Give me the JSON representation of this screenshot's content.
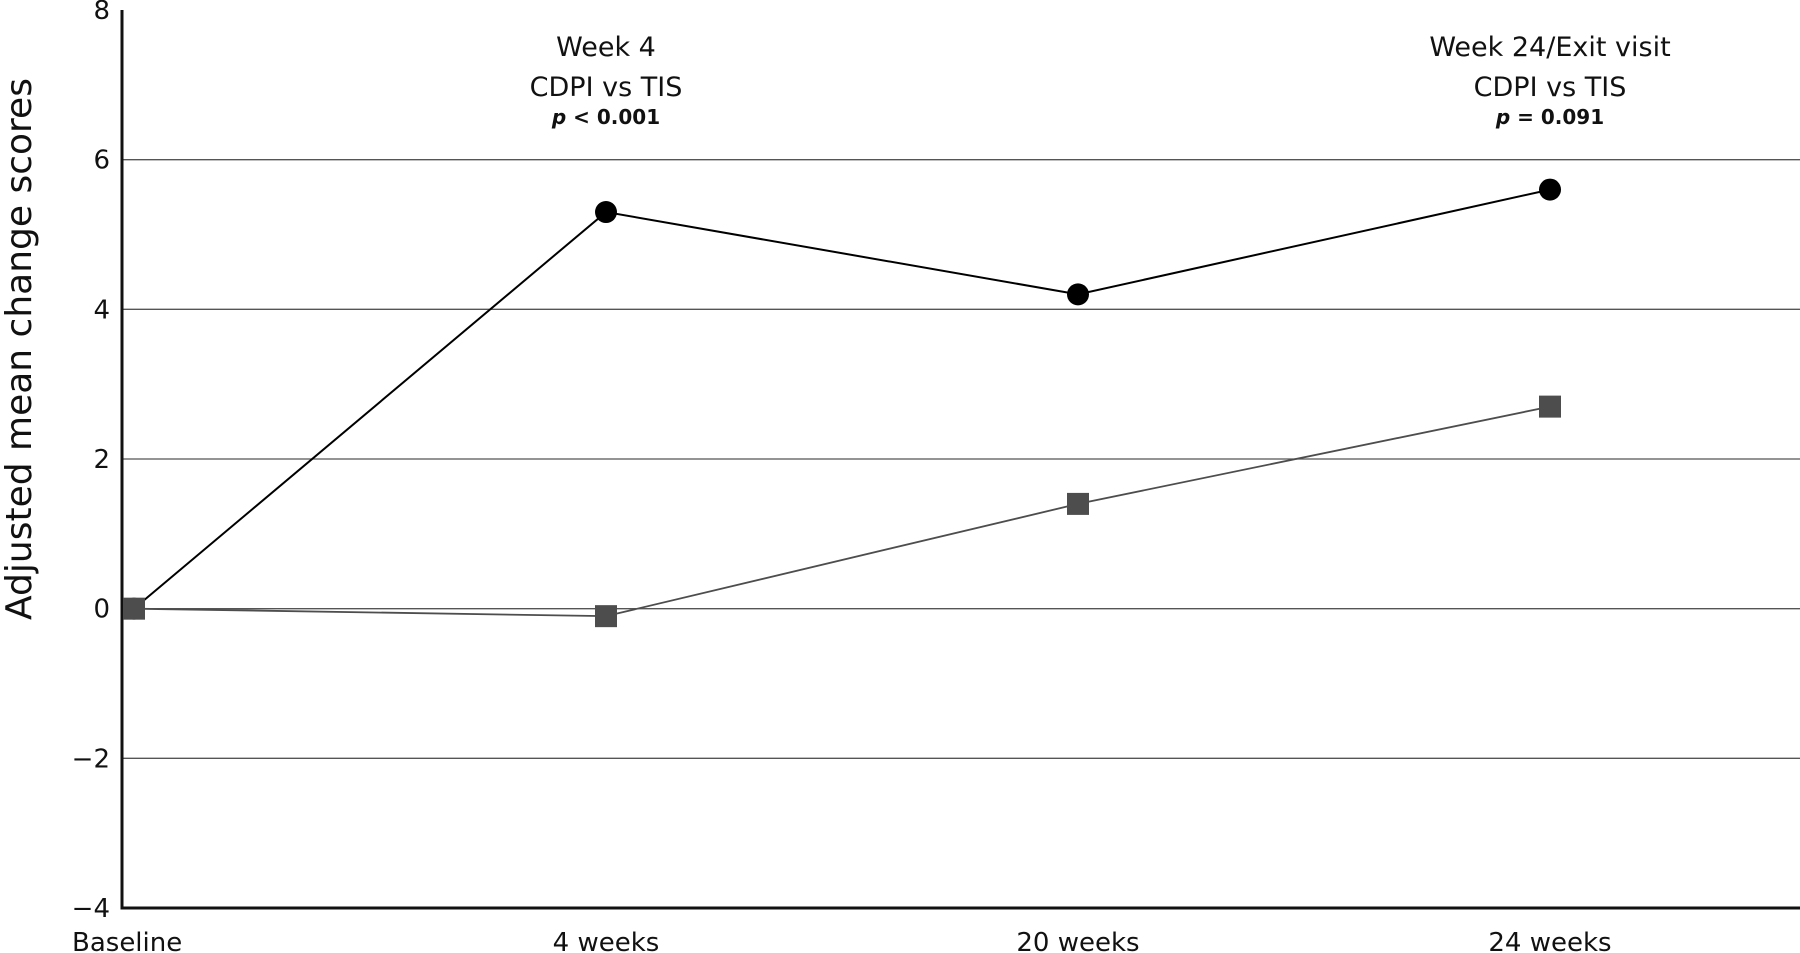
{
  "chart_data": {
    "type": "line",
    "title": "",
    "xlabel": "",
    "ylabel": "Adjusted mean change scores",
    "categories": [
      "Baseline",
      "4 weeks",
      "20 weeks",
      "24 weeks"
    ],
    "ylim": [
      -4,
      8
    ],
    "yticks": [
      -4,
      -2,
      0,
      2,
      4,
      6,
      8
    ],
    "ytick_labels": [
      "−4",
      "−2",
      "0",
      "2",
      "4",
      "6",
      "8"
    ],
    "grid": true,
    "series": [
      {
        "marker": "circle",
        "color": "#000000",
        "values": [
          0.0,
          5.3,
          4.2,
          5.6
        ]
      },
      {
        "marker": "square",
        "color": "#4d4d4d",
        "values": [
          0.0,
          -0.1,
          1.4,
          2.7
        ]
      }
    ],
    "annotations": [
      {
        "category": "4 weeks",
        "line1": "Week 4",
        "line2": "CDPI vs TIS",
        "p_label": "p",
        "p_rest": " < 0.001"
      },
      {
        "category": "24 weeks",
        "line1": "Week 24/Exit visit",
        "line2": "CDPI vs TIS",
        "p_label": "p",
        "p_rest": " = 0.091"
      }
    ]
  }
}
